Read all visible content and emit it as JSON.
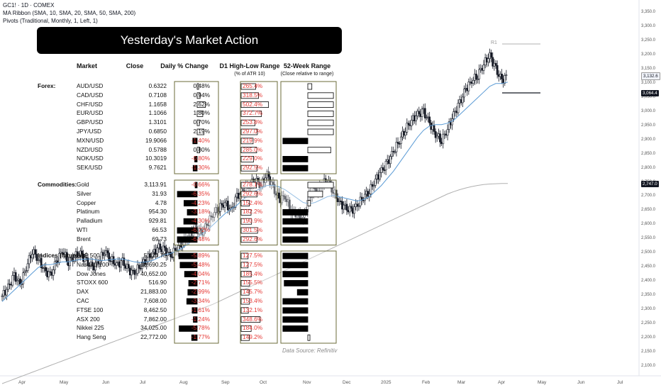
{
  "header": {
    "symbol": "GC1! · 1D · COMEX",
    "ma_ribbon": "MA Ribbon (SMA, 10, SMA, 20, SMA, 50, SMA, 200)",
    "pivots": "Pivots (Traditional, Monthly, 1, Left, 1)"
  },
  "pivot_label": "R1",
  "price_tags": {
    "last": "3,132.6",
    "level": "3,064.4",
    "sma200": "2,747.0"
  },
  "colors": {
    "last": "#ffffff",
    "sma20": "#5b9bd5",
    "sma200": "#b0b0b0",
    "neg": "#e53935",
    "border": "#6b6b3a"
  },
  "overlay": {
    "title": "Yesterday's Market Action",
    "col_market": "Market",
    "col_close": "Close",
    "col_change": "Daily % Change",
    "col_range": "D1 High-Low Range",
    "col_range_sub": "(% of ATR 10)",
    "col_52w": "52-Week Range",
    "col_52w_sub": "(Close relative to range)",
    "source": "Data Source: Refinitiv",
    "groups": [
      {
        "label": "Forex:",
        "rows": [
          {
            "name": "AUD/USD",
            "close": "0.6322",
            "chg": "0.48%",
            "chg_v": 0.48,
            "rng": "265.4%",
            "rng_v": 265.4,
            "w52": 0.15
          },
          {
            "name": "CAD/USD",
            "close": "0.7108",
            "chg": "0.94%",
            "chg_v": 0.94,
            "rng": "318.5%",
            "rng_v": 318.5,
            "w52": 0.95
          },
          {
            "name": "CHF/USD",
            "close": "1.1658",
            "chg": "2.62%",
            "chg_v": 2.62,
            "rng": "502.4%",
            "rng_v": 502.4,
            "w52": 0.95
          },
          {
            "name": "EUR/USD",
            "close": "1.1066",
            "chg": "1.80%",
            "chg_v": 1.8,
            "rng": "372.7%",
            "rng_v": 372.7,
            "w52": 0.95
          },
          {
            "name": "GBP/USD",
            "close": "1.3101",
            "chg": "0.70%",
            "chg_v": 0.7,
            "rng": "253.8%",
            "rng_v": 253.8,
            "w52": 0.95
          },
          {
            "name": "JPY/USD",
            "close": "0.6850",
            "chg": "2.19%",
            "chg_v": 2.19,
            "rng": "297.0%",
            "rng_v": 297.0,
            "w52": 0.95
          },
          {
            "name": "MXN/USD",
            "close": "19.9066",
            "chg": "-1.40%",
            "chg_v": -1.4,
            "rng": "219.9%",
            "rng_v": 219.9,
            "w52": -0.95
          },
          {
            "name": "NZD/USD",
            "close": "0.5788",
            "chg": "0.80%",
            "chg_v": 0.8,
            "rng": "285.0%",
            "rng_v": 285.0,
            "w52": 0.85
          },
          {
            "name": "NOK/USD",
            "close": "10.3019",
            "chg": "-0.80%",
            "chg_v": -0.8,
            "rng": "229.0%",
            "rng_v": 229.0,
            "w52": -0.95
          },
          {
            "name": "SEK/USD",
            "close": "9.7621",
            "chg": "-1.30%",
            "chg_v": -1.3,
            "rng": "292.5%",
            "rng_v": 292.5,
            "w52": -0.95
          }
        ]
      },
      {
        "label": "Commodities:",
        "rows": [
          {
            "name": "Gold",
            "close": "3,113.91",
            "chg": "-0.66%",
            "chg_v": -0.66,
            "rng": "278.1%",
            "rng_v": 278.1,
            "w52": 0.95
          },
          {
            "name": "Silver",
            "close": "31.93",
            "chg": "-6.35%",
            "chg_v": -6.35,
            "rng": "292.6%",
            "rng_v": 292.6,
            "w52": 0.55
          },
          {
            "name": "Copper",
            "close": "4.78",
            "chg": "-4.23%",
            "chg_v": -4.23,
            "rng": "152.4%",
            "rng_v": 152.4,
            "w52": 0.1
          },
          {
            "name": "Platinum",
            "close": "954.30",
            "chg": "-3.18%",
            "chg_v": -3.18,
            "rng": "182.2%",
            "rng_v": 182.2,
            "w52": -0.95
          },
          {
            "name": "Palladium",
            "close": "929.81",
            "chg": "-4.30%",
            "chg_v": -4.3,
            "rng": "190.9%",
            "rng_v": 190.9,
            "w52": -0.95
          },
          {
            "name": "WTI",
            "close": "66.53",
            "chg": "-6.72%",
            "chg_v": -6.72,
            "rng": "301.5%",
            "rng_v": 301.5,
            "w52": -0.95
          },
          {
            "name": "Brent",
            "close": "69.73",
            "chg": "-6.48%",
            "chg_v": -6.48,
            "rng": "292.6%",
            "rng_v": 292.6,
            "w52": -0.95
          }
        ]
      },
      {
        "label": "Indices (futures):",
        "rows": [
          {
            "name": "S&P 500",
            "close": "5,420.75",
            "chg": "-5.89%",
            "chg_v": -5.89,
            "rng": "127.5%",
            "rng_v": 127.5,
            "w52": -0.95
          },
          {
            "name": "Nasdaq-100",
            "close": "18,690.25",
            "chg": "-5.48%",
            "chg_v": -5.48,
            "rng": "127.5%",
            "rng_v": 127.5,
            "w52": -0.95
          },
          {
            "name": "Dow Jones",
            "close": "40,652.00",
            "chg": "-4.04%",
            "chg_v": -4.04,
            "rng": "185.4%",
            "rng_v": 185.4,
            "w52": -0.95
          },
          {
            "name": "STOXX 600",
            "close": "516.90",
            "chg": "-2.71%",
            "chg_v": -2.71,
            "rng": "155.5%",
            "rng_v": 155.5,
            "w52": -0.9
          },
          {
            "name": "DAX",
            "close": "21,883.00",
            "chg": "-2.99%",
            "chg_v": -2.99,
            "rng": "145.7%",
            "rng_v": 145.7,
            "w52": -0.4
          },
          {
            "name": "CAC",
            "close": "7,608.00",
            "chg": "-3.34%",
            "chg_v": -3.34,
            "rng": "153.4%",
            "rng_v": 153.4,
            "w52": -0.95
          },
          {
            "name": "FTSE 100",
            "close": "8,462.50",
            "chg": "-1.61%",
            "chg_v": -1.61,
            "rng": "132.1%",
            "rng_v": 132.1,
            "w52": -0.95
          },
          {
            "name": "ASX 200",
            "close": "7,862.00",
            "chg": "-1.24%",
            "chg_v": -1.24,
            "rng": "348.6%",
            "rng_v": 348.6,
            "w52": -0.95
          },
          {
            "name": "Nikkei 225",
            "close": "34,025.00",
            "chg": "-5.78%",
            "chg_v": -5.78,
            "rng": "184.0%",
            "rng_v": 184.0,
            "w52": -0.95
          },
          {
            "name": "Hang Seng",
            "close": "22,772.00",
            "chg": "-1.77%",
            "chg_v": -1.77,
            "rng": "149.2%",
            "rng_v": 149.2,
            "w52": 0.05
          }
        ]
      }
    ]
  },
  "chart_data": {
    "type": "line",
    "title": "",
    "xlabel": "",
    "ylabel": "",
    "x_ticks": [
      "Apr",
      "May",
      "Jun",
      "Jul",
      "Aug",
      "Sep",
      "Oct",
      "Nov",
      "Dec",
      "2025",
      "Feb",
      "Mar",
      "Apr",
      "May",
      "Jun",
      "Jul"
    ],
    "y_ticks": [
      "3,350.0",
      "3,300.0",
      "3,250.0",
      "3,200.0",
      "3,150.0",
      "3,100.0",
      "3,050.0",
      "3,000.0",
      "2,950.0",
      "2,900.0",
      "2,850.0",
      "2,800.0",
      "2,750.0",
      "2,700.0",
      "2,650.0",
      "2,600.0",
      "2,550.0",
      "2,500.0",
      "2,450.0",
      "2,400.0",
      "2,350.0",
      "2,300.0",
      "2,250.0",
      "2,200.0",
      "2,150.0",
      "2,100.0"
    ],
    "ylim": [
      2085,
      3365
    ],
    "grid": false,
    "series": [
      {
        "values": [
          2350,
          2380,
          2420,
          2390,
          2450,
          2510,
          2480,
          2440,
          2420,
          2470,
          2510,
          2470,
          2490,
          2500,
          2470,
          2450,
          2470,
          2510,
          2480,
          2460,
          2470,
          2440,
          2430,
          2460,
          2480,
          2500,
          2520,
          2510,
          2490,
          2520,
          2540,
          2560,
          2590,
          2570,
          2600,
          2640,
          2660,
          2680,
          2650,
          2700,
          2720,
          2740,
          2760,
          2740,
          2780,
          2730,
          2690,
          2700,
          2650,
          2640,
          2620,
          2700,
          2720,
          2740,
          2760,
          2720,
          2680,
          2660,
          2650,
          2670,
          2700,
          2720,
          2760,
          2790,
          2820,
          2860,
          2900,
          2940,
          2970,
          2990,
          3000,
          2960,
          2920,
          2900,
          2940,
          2990,
          3030,
          3080,
          3110,
          3130,
          3170,
          3200,
          3150,
          3110,
          3130
        ]
      },
      {
        "values": [
          2330,
          2350,
          2370,
          2390,
          2410,
          2430,
          2450,
          2460,
          2460,
          2465,
          2470,
          2470,
          2475,
          2478,
          2480,
          2480,
          2475,
          2475,
          2478,
          2480,
          2480,
          2475,
          2470,
          2468,
          2470,
          2475,
          2485,
          2495,
          2500,
          2508,
          2520,
          2535,
          2550,
          2565,
          2580,
          2600,
          2620,
          2640,
          2655,
          2670,
          2690,
          2705,
          2720,
          2730,
          2740,
          2740,
          2735,
          2725,
          2710,
          2695,
          2680,
          2675,
          2680,
          2690,
          2700,
          2705,
          2700,
          2695,
          2690,
          2685,
          2690,
          2700,
          2720,
          2740,
          2765,
          2790,
          2820,
          2850,
          2880,
          2910,
          2935,
          2950,
          2955,
          2955,
          2960,
          2970,
          2990,
          3010,
          3030,
          3050,
          3070,
          3090,
          3100,
          3100,
          3105
        ]
      },
      {
        "values": [
          2040,
          2048,
          2056,
          2064,
          2072,
          2080,
          2088,
          2096,
          2104,
          2112,
          2120,
          2128,
          2136,
          2144,
          2152,
          2160,
          2168,
          2176,
          2184,
          2192,
          2200,
          2208,
          2216,
          2224,
          2232,
          2240,
          2248,
          2256,
          2264,
          2272,
          2280,
          2288,
          2296,
          2304,
          2312,
          2320,
          2330,
          2340,
          2350,
          2360,
          2370,
          2380,
          2390,
          2400,
          2410,
          2420,
          2430,
          2440,
          2450,
          2460,
          2470,
          2480,
          2490,
          2500,
          2510,
          2520,
          2530,
          2540,
          2550,
          2560,
          2570,
          2580,
          2590,
          2600,
          2610,
          2620,
          2630,
          2640,
          2650,
          2660,
          2670,
          2680,
          2690,
          2700,
          2710,
          2718,
          2725,
          2731,
          2736,
          2740,
          2743,
          2745,
          2746,
          2747,
          2747
        ]
      }
    ]
  }
}
